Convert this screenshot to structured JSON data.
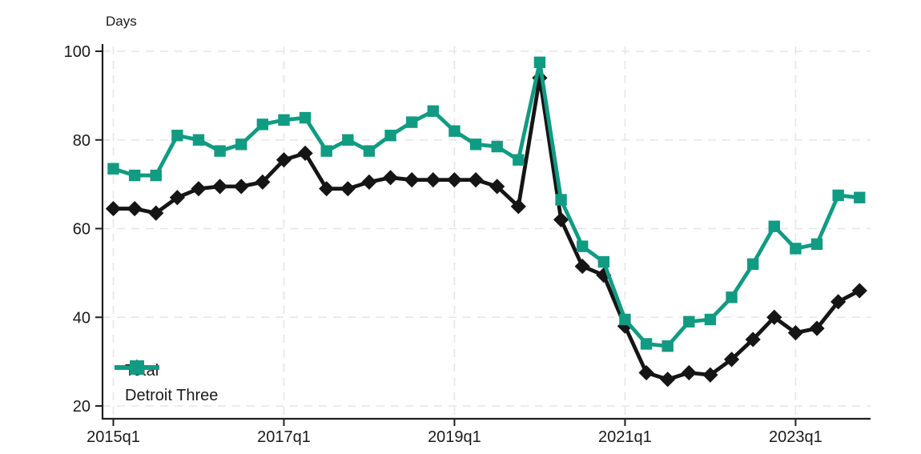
{
  "chart": {
    "y_axis_title": "Days",
    "legend": [
      {
        "label": "Total"
      },
      {
        "label": "Detroit Three"
      }
    ]
  },
  "chart_data": {
    "type": "line",
    "title": "",
    "xlabel": "",
    "ylabel": "Days",
    "ylim": [
      20,
      100
    ],
    "yticks": [
      20,
      40,
      60,
      80,
      100
    ],
    "xticks": [
      "2015q1",
      "2017q1",
      "2019q1",
      "2021q1",
      "2023q1"
    ],
    "grid": true,
    "legend_position": "bottom-left",
    "x": [
      "2015q1",
      "2015q2",
      "2015q3",
      "2015q4",
      "2016q1",
      "2016q2",
      "2016q3",
      "2016q4",
      "2017q1",
      "2017q2",
      "2017q3",
      "2017q4",
      "2018q1",
      "2018q2",
      "2018q3",
      "2018q4",
      "2019q1",
      "2019q2",
      "2019q3",
      "2019q4",
      "2020q1",
      "2020q2",
      "2020q3",
      "2020q4",
      "2021q1",
      "2021q2",
      "2021q3",
      "2021q4",
      "2022q1",
      "2022q2",
      "2022q3",
      "2022q4",
      "2023q1",
      "2023q2",
      "2023q3",
      "2023q4"
    ],
    "series": [
      {
        "name": "Total",
        "marker": "diamond",
        "color": "#151515",
        "values": [
          64.5,
          64.5,
          63.5,
          67,
          69,
          69.5,
          69.5,
          70.5,
          75.5,
          77,
          69,
          69,
          70.5,
          71.5,
          71,
          71,
          71,
          71,
          69.5,
          65,
          94,
          62,
          51.5,
          49.5,
          38,
          27.5,
          26,
          27.5,
          27,
          30.5,
          35,
          40,
          36.5,
          37.5,
          43.5,
          46
        ]
      },
      {
        "name": "Detroit Three",
        "marker": "square",
        "color": "#119b82",
        "values": [
          73.5,
          72,
          72,
          81,
          80,
          77.5,
          79,
          83.5,
          84.5,
          85,
          77.5,
          80,
          77.5,
          81,
          84,
          86.5,
          82,
          79,
          78.5,
          75.5,
          97.5,
          66.5,
          56,
          52.5,
          39.5,
          34,
          33.5,
          39,
          39.5,
          44.5,
          52,
          60.5,
          55.5,
          56.5,
          67.5,
          67
        ]
      }
    ]
  }
}
